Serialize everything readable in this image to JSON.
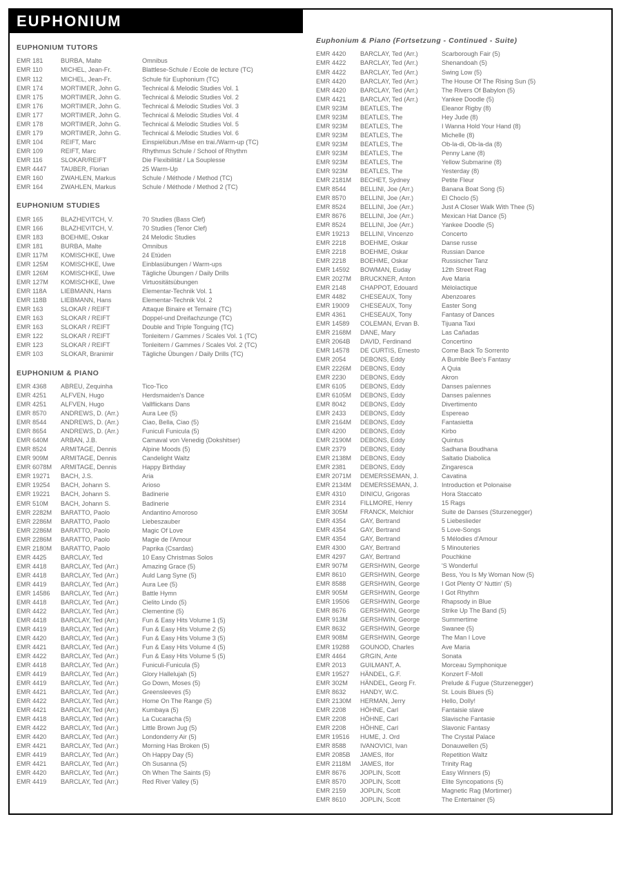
{
  "page_title": "EUPHONIUM",
  "sections_left": [
    {
      "title": "EUPHONIUM TUTORS",
      "rows": [
        [
          "EMR 181",
          "BURBA, Malte",
          "Omnibus"
        ],
        [
          "EMR 110",
          "MICHEL, Jean-Fr.",
          "Blattlese-Schule / Ecole de lecture (TC)"
        ],
        [
          "EMR 112",
          "MICHEL, Jean-Fr.",
          "Schule für Euphonium (TC)"
        ],
        [
          "EMR 174",
          "MORTIMER, John G.",
          "Technical & Melodic Studies Vol. 1"
        ],
        [
          "EMR 175",
          "MORTIMER, John G.",
          "Technical & Melodic Studies Vol. 2"
        ],
        [
          "EMR 176",
          "MORTIMER, John G.",
          "Technical & Melodic Studies Vol. 3"
        ],
        [
          "EMR 177",
          "MORTIMER, John G.",
          "Technical & Melodic Studies Vol. 4"
        ],
        [
          "EMR 178",
          "MORTIMER, John G.",
          "Technical & Melodic Studies Vol. 5"
        ],
        [
          "EMR 179",
          "MORTIMER, John G.",
          "Technical & Melodic Studies Vol. 6"
        ],
        [
          "EMR 104",
          "REIFT, Marc",
          "Einspielübun./Mise en trai./Warm-up (TC)"
        ],
        [
          "EMR 109",
          "REIFT, Marc",
          "Rhythmus Schule / School of Rhythm"
        ],
        [
          "EMR 116",
          "SLOKAR/REIFT",
          "Die Flexibilität / La Souplesse"
        ],
        [
          "EMR 4447",
          "TAUBER, Florian",
          "25 Warm-Up"
        ],
        [
          "EMR 160",
          "ZWAHLEN, Markus",
          "Schule / Méthode / Method (TC)"
        ],
        [
          "EMR 164",
          "ZWAHLEN, Markus",
          "Schule / Méthode / Method 2 (TC)"
        ]
      ]
    },
    {
      "title": "EUPHONIUM STUDIES",
      "rows": [
        [
          "EMR 165",
          "BLAZHEVITCH, V.",
          "70 Studies (Bass Clef)"
        ],
        [
          "EMR 166",
          "BLAZHEVITCH, V.",
          "70 Studies (Tenor Clef)"
        ],
        [
          "EMR 183",
          "BOEHME, Oskar",
          "24 Melodic Studies"
        ],
        [
          "EMR 181",
          "BURBA, Malte",
          "Omnibus"
        ],
        [
          "EMR 117M",
          "KOMISCHKE, Uwe",
          "24 Etüden"
        ],
        [
          "EMR 125M",
          "KOMISCHKE, Uwe",
          "Einblasübungen / Warm-ups"
        ],
        [
          "EMR 126M",
          "KOMISCHKE, Uwe",
          "Tägliche Übungen / Daily Drills"
        ],
        [
          "EMR 127M",
          "KOMISCHKE, Uwe",
          "Virtuositätsübungen"
        ],
        [
          "EMR 118A",
          "LIEBMANN, Hans",
          "Elementar-Technik Vol. 1"
        ],
        [
          "EMR 118B",
          "LIEBMANN, Hans",
          "Elementar-Technik Vol. 2"
        ],
        [
          "EMR 163",
          "SLOKAR / REIFT",
          "Attaque Binaire et Ternaire (TC)"
        ],
        [
          "EMR 163",
          "SLOKAR / REIFT",
          "Doppel-und Dreifachzunge (TC)"
        ],
        [
          "EMR 163",
          "SLOKAR / REIFT",
          "Double and Triple Tonguing (TC)"
        ],
        [
          "EMR 122",
          "SLOKAR / REIFT",
          "Tonleitern / Gammes / Scales Vol. 1 (TC)"
        ],
        [
          "EMR 123",
          "SLOKAR / REIFT",
          "Tonleitern / Gammes / Scales Vol. 2 (TC)"
        ],
        [
          "EMR 103",
          "SLOKAR, Branimir",
          "Tägliche Übungen / Daily Drills (TC)"
        ]
      ]
    },
    {
      "title": "EUPHONIUM & PIANO",
      "rows": [
        [
          "EMR 4368",
          "ABREU, Zequinha",
          "Tico-Tico"
        ],
        [
          "EMR 4251",
          "ALFVEN, Hugo",
          "Herdsmaiden's Dance"
        ],
        [
          "EMR 4251",
          "ALFVEN, Hugo",
          "Vallflickans Dans"
        ],
        [
          "EMR 8570",
          "ANDREWS, D. (Arr.)",
          "Aura Lee (5)"
        ],
        [
          "EMR 8544",
          "ANDREWS, D. (Arr.)",
          "Ciao, Bella, Ciao (5)"
        ],
        [
          "EMR 8654",
          "ANDREWS, D. (Arr.)",
          "Funiculi Funicula (5)"
        ],
        [
          "EMR 640M",
          "ARBAN, J.B.",
          "Carnaval von Venedig (Dokshitser)"
        ],
        [
          "EMR 8524",
          "ARMITAGE, Dennis",
          "Alpine Moods (5)"
        ],
        [
          "EMR 909M",
          "ARMITAGE, Dennis",
          "Candelight Waltz"
        ],
        [
          "EMR 6078M",
          "ARMITAGE, Dennis",
          "Happy Birthday"
        ],
        [
          "EMR 19271",
          "BACH, J.S.",
          "Aria"
        ],
        [
          "EMR 19254",
          "BACH, Johann S.",
          "Arioso"
        ],
        [
          "EMR 19221",
          "BACH, Johann S.",
          "Badinerie"
        ],
        [
          "EMR 510M",
          "BACH, Johann S.",
          "Badinerie"
        ],
        [
          "EMR 2282M",
          "BARATTO, Paolo",
          "Andantino Amoroso"
        ],
        [
          "EMR 2286M",
          "BARATTO, Paolo",
          "Liebeszauber"
        ],
        [
          "EMR 2286M",
          "BARATTO, Paolo",
          "Magic Of Love"
        ],
        [
          "EMR 2286M",
          "BARATTO, Paolo",
          "Magie de l'Amour"
        ],
        [
          "EMR 2180M",
          "BARATTO, Paolo",
          "Paprika (Csardas)"
        ],
        [
          "EMR 4425",
          "BARCLAY, Ted",
          "10 Easy Christmas Solos"
        ],
        [
          "EMR 4418",
          "BARCLAY, Ted (Arr.)",
          "Amazing Grace (5)"
        ],
        [
          "EMR 4418",
          "BARCLAY, Ted (Arr.)",
          "Auld Lang Syne (5)"
        ],
        [
          "EMR 4419",
          "BARCLAY, Ted (Arr.)",
          "Aura Lee (5)"
        ],
        [
          "EMR 14586",
          "BARCLAY, Ted (Arr.)",
          "Battle Hymn"
        ],
        [
          "EMR 4418",
          "BARCLAY, Ted (Arr.)",
          "Cielito Lindo (5)"
        ],
        [
          "EMR 4422",
          "BARCLAY, Ted (Arr.)",
          "Clementine (5)"
        ],
        [
          "EMR 4418",
          "BARCLAY, Ted (Arr.)",
          "Fun & Easy Hits Volume 1 (5)"
        ],
        [
          "EMR 4419",
          "BARCLAY, Ted (Arr.)",
          "Fun & Easy Hits Volume 2 (5)"
        ],
        [
          "EMR 4420",
          "BARCLAY, Ted (Arr.)",
          "Fun & Easy Hits Volume 3 (5)"
        ],
        [
          "EMR 4421",
          "BARCLAY, Ted (Arr.)",
          "Fun & Easy Hits Volume 4 (5)"
        ],
        [
          "EMR 4422",
          "BARCLAY, Ted (Arr.)",
          "Fun & Easy Hits Volume 5 (5)"
        ],
        [
          "EMR 4418",
          "BARCLAY, Ted (Arr.)",
          "Funiculi-Funicula (5)"
        ],
        [
          "EMR 4419",
          "BARCLAY, Ted (Arr.)",
          "Glory Hallelujah (5)"
        ],
        [
          "EMR 4419",
          "BARCLAY, Ted (Arr.)",
          "Go Down, Moses (5)"
        ],
        [
          "EMR 4421",
          "BARCLAY, Ted (Arr.)",
          "Greensleeves (5)"
        ],
        [
          "EMR 4422",
          "BARCLAY, Ted (Arr.)",
          "Home On The Range (5)"
        ],
        [
          "EMR 4421",
          "BARCLAY, Ted (Arr.)",
          "Kumbaya (5)"
        ],
        [
          "EMR 4418",
          "BARCLAY, Ted (Arr.)",
          "La Cucaracha (5)"
        ],
        [
          "EMR 4422",
          "BARCLAY, Ted (Arr.)",
          "Little Brown Jug (5)"
        ],
        [
          "EMR 4420",
          "BARCLAY, Ted (Arr.)",
          "Londonderry Air (5)"
        ],
        [
          "EMR 4421",
          "BARCLAY, Ted (Arr.)",
          "Morning Has Broken (5)"
        ],
        [
          "EMR 4419",
          "BARCLAY, Ted (Arr.)",
          "Oh Happy Day (5)"
        ],
        [
          "EMR 4421",
          "BARCLAY, Ted (Arr.)",
          "Oh Susanna (5)"
        ],
        [
          "EMR 4420",
          "BARCLAY, Ted (Arr.)",
          "Oh When The Saints (5)"
        ],
        [
          "EMR 4419",
          "BARCLAY, Ted (Arr.)",
          "Red River Valley (5)"
        ]
      ]
    }
  ],
  "sections_right": [
    {
      "title": "Euphonium & Piano (Fortsetzung - Continued - Suite)",
      "italic": true,
      "rows": [
        [
          "EMR 4420",
          "BARCLAY, Ted (Arr.)",
          "Scarborough Fair (5)"
        ],
        [
          "EMR 4422",
          "BARCLAY, Ted (Arr.)",
          "Shenandoah (5)"
        ],
        [
          "EMR 4422",
          "BARCLAY, Ted (Arr.)",
          "Swing Low (5)"
        ],
        [
          "EMR 4420",
          "BARCLAY, Ted (Arr.)",
          "The House Of The Rising Sun (5)"
        ],
        [
          "EMR 4420",
          "BARCLAY, Ted (Arr.)",
          "The Rivers Of Babylon (5)"
        ],
        [
          "EMR 4421",
          "BARCLAY, Ted (Arr.)",
          "Yankee Doodle (5)"
        ],
        [
          "EMR 923M",
          "BEATLES, The",
          "Eleanor Rigby (8)"
        ],
        [
          "EMR 923M",
          "BEATLES, The",
          "Hey Jude (8)"
        ],
        [
          "EMR 923M",
          "BEATLES, The",
          "I Wanna Hold Your Hand (8)"
        ],
        [
          "EMR 923M",
          "BEATLES, The",
          "Michelle (8)"
        ],
        [
          "EMR 923M",
          "BEATLES, The",
          "Ob-la-di, Ob-la-da (8)"
        ],
        [
          "EMR 923M",
          "BEATLES, The",
          "Penny Lane (8)"
        ],
        [
          "EMR 923M",
          "BEATLES, The",
          "Yellow Submarine (8)"
        ],
        [
          "EMR 923M",
          "BEATLES, The",
          "Yesterday (8)"
        ],
        [
          "EMR 2181M",
          "BECHET, Sydney",
          "Petite Fleur"
        ],
        [
          "EMR 8544",
          "BELLINI, Joe (Arr.)",
          "Banana Boat Song (5)"
        ],
        [
          "EMR 8570",
          "BELLINI, Joe (Arr.)",
          "El Choclo (5)"
        ],
        [
          "EMR 8524",
          "BELLINI, Joe (Arr.)",
          "Just A Closer Walk With Thee (5)"
        ],
        [
          "EMR 8676",
          "BELLINI, Joe (Arr.)",
          "Mexican Hat Dance (5)"
        ],
        [
          "EMR 8524",
          "BELLINI, Joe (Arr.)",
          "Yankee Doodle (5)"
        ],
        [
          "EMR 19213",
          "BELLINI, Vincenzo",
          "Concerto"
        ],
        [
          "EMR 2218",
          "BOEHME, Oskar",
          "Danse russe"
        ],
        [
          "EMR 2218",
          "BOEHME, Oskar",
          "Russian Dance"
        ],
        [
          "EMR 2218",
          "BOEHME, Oskar",
          "Russischer Tanz"
        ],
        [
          "EMR 14592",
          "BOWMAN, Euday",
          "12th Street Rag"
        ],
        [
          "EMR 2027M",
          "BRUCKNER, Anton",
          "Ave Maria"
        ],
        [
          "EMR 2148",
          "CHAPPOT, Edouard",
          "Mélolactique"
        ],
        [
          "EMR 4482",
          "CHESEAUX, Tony",
          "Abenzoares"
        ],
        [
          "EMR 19009",
          "CHESEAUX, Tony",
          "Easter Song"
        ],
        [
          "EMR 4361",
          "CHESEAUX, Tony",
          "Fantasy of Dances"
        ],
        [
          "EMR 14589",
          "COLEMAN, Ervan B.",
          "Tijuana Taxi"
        ],
        [
          "EMR 2168M",
          "DANE, Mary",
          "Las Cañadas"
        ],
        [
          "EMR 2064B",
          "DAVID, Ferdinand",
          "Concertino"
        ],
        [
          "EMR 14578",
          "DE CURTIS, Ernesto",
          "Come Back To Sorrento"
        ],
        [
          "EMR 2054",
          "DEBONS, Eddy",
          "A Bumble Bee's Fantasy"
        ],
        [
          "EMR 2226M",
          "DEBONS, Eddy",
          "A Quia"
        ],
        [
          "EMR 2230",
          "DEBONS, Eddy",
          "Akron"
        ],
        [
          "EMR 6105",
          "DEBONS, Eddy",
          "Danses païennes"
        ],
        [
          "EMR 6105M",
          "DEBONS, Eddy",
          "Danses païennes"
        ],
        [
          "EMR 8042",
          "DEBONS, Eddy",
          "Divertimento"
        ],
        [
          "EMR 2433",
          "DEBONS, Eddy",
          "Espereao"
        ],
        [
          "EMR 2164M",
          "DEBONS, Eddy",
          "Fantasietta"
        ],
        [
          "EMR 4200",
          "DEBONS, Eddy",
          "Kirbo"
        ],
        [
          "EMR 2190M",
          "DEBONS, Eddy",
          "Quintus"
        ],
        [
          "EMR 2379",
          "DEBONS, Eddy",
          "Sadhana Boudhana"
        ],
        [
          "EMR 2138M",
          "DEBONS, Eddy",
          "Saltatio Diabolica"
        ],
        [
          "EMR 2381",
          "DEBONS, Eddy",
          "Zingaresca"
        ],
        [
          "EMR 2071M",
          "DEMERSSEMAN, J.",
          "Cavatina"
        ],
        [
          "EMR 2134M",
          "DEMERSSEMAN, J.",
          "Introduction et Polonaise"
        ],
        [
          "EMR 4310",
          "DINICU, Grigoras",
          "Hora Staccato"
        ],
        [
          "EMR 2314",
          "FILLMORE, Henry",
          "15 Rags"
        ],
        [
          "EMR 305M",
          "FRANCK, Melchior",
          "Suite de Danses (Sturzenegger)"
        ],
        [
          "EMR 4354",
          "GAY, Bertrand",
          "5 Liebeslieder"
        ],
        [
          "EMR 4354",
          "GAY, Bertrand",
          "5 Love-Songs"
        ],
        [
          "EMR 4354",
          "GAY, Bertrand",
          "5 Mélodies d'Amour"
        ],
        [
          "EMR 4300",
          "GAY, Bertrand",
          "5 Minouteries"
        ],
        [
          "EMR 4297",
          "GAY, Bertrand",
          "Pouchkine"
        ],
        [
          "EMR 907M",
          "GERSHWIN, George",
          "'S Wonderful"
        ],
        [
          "EMR 8610",
          "GERSHWIN, George",
          "Bess, You Is My Woman Now (5)"
        ],
        [
          "EMR 8588",
          "GERSHWIN, George",
          "I Got Plenty O' Nuttin' (5)"
        ],
        [
          "EMR 905M",
          "GERSHWIN, George",
          "I Got Rhythm"
        ],
        [
          "EMR 19506",
          "GERSHWIN, George",
          "Rhapsody in Blue"
        ],
        [
          "EMR 8676",
          "GERSHWIN, George",
          "Strike Up The Band (5)"
        ],
        [
          "EMR 913M",
          "GERSHWIN, George",
          "Summertime"
        ],
        [
          "EMR 8632",
          "GERSHWIN, George",
          "Swanee (5)"
        ],
        [
          "EMR 908M",
          "GERSHWIN, George",
          "The Man I Love"
        ],
        [
          "EMR 19288",
          "GOUNOD, Charles",
          "Ave Maria"
        ],
        [
          "EMR 4464",
          "GRGIN, Ante",
          "Sonata"
        ],
        [
          "EMR 2013",
          "GUILMANT, A.",
          "Morceau Symphonique"
        ],
        [
          "EMR 19527",
          "HÄNDEL, G.F.",
          "Konzert F-Moll"
        ],
        [
          "EMR 302M",
          "HÄNDEL, Georg Fr.",
          "Prelude & Fugue (Sturzenegger)"
        ],
        [
          "EMR 8632",
          "HANDY, W.C.",
          "St. Louis Blues (5)"
        ],
        [
          "EMR 2130M",
          "HERMAN, Jerry",
          "Hello, Dolly!"
        ],
        [
          "EMR 2208",
          "HÖHNE, Carl",
          "Fantaisie slave"
        ],
        [
          "EMR 2208",
          "HÖHNE, Carl",
          "Slavische Fantasie"
        ],
        [
          "EMR 2208",
          "HÖHNE, Carl",
          "Slavonic Fantasy"
        ],
        [
          "EMR 19516",
          "HUME, J. Ord",
          "The Crystal Palace"
        ],
        [
          "EMR 8588",
          "IVANOVICI, Ivan",
          "Donauwellen (5)"
        ],
        [
          "EMR 2085B",
          "JAMES, Ifor",
          "Repetition Waltz"
        ],
        [
          "EMR 2118M",
          "JAMES, Ifor",
          "Trinity Rag"
        ],
        [
          "EMR 8676",
          "JOPLIN, Scott",
          "Easy Winners (5)"
        ],
        [
          "EMR 8570",
          "JOPLIN, Scott",
          "Elite Syncopations (5)"
        ],
        [
          "EMR 2159",
          "JOPLIN, Scott",
          "Magnetic Rag (Mortimer)"
        ],
        [
          "EMR 8610",
          "JOPLIN, Scott",
          "The Entertainer (5)"
        ]
      ]
    }
  ]
}
